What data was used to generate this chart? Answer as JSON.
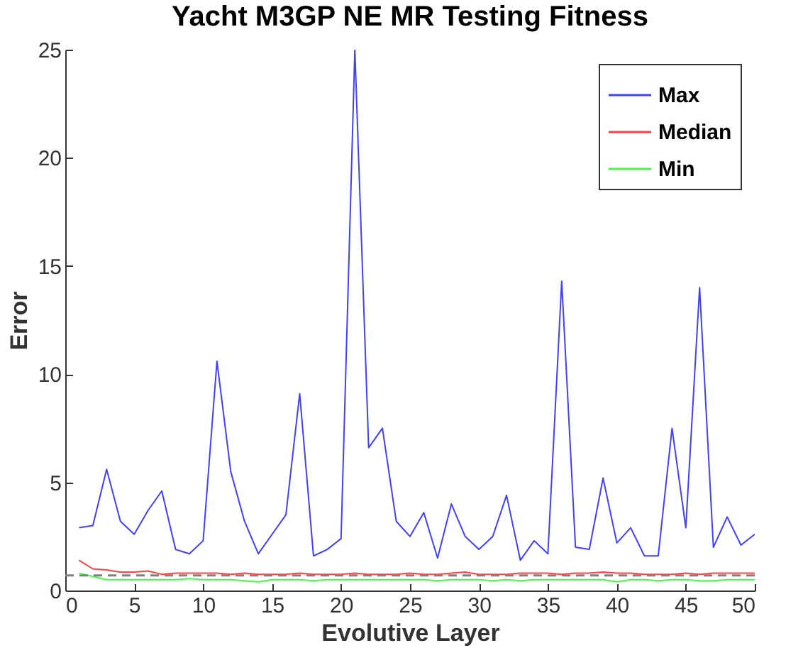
{
  "chart_data": {
    "type": "line",
    "title": "Yacht M3GP NE MR Testing Fitness",
    "xlabel": "Evolutive Layer",
    "ylabel": "Error",
    "x": [
      1,
      2,
      3,
      4,
      5,
      6,
      7,
      8,
      9,
      10,
      11,
      12,
      13,
      14,
      15,
      16,
      17,
      18,
      19,
      20,
      21,
      22,
      23,
      24,
      25,
      26,
      27,
      28,
      29,
      30,
      31,
      32,
      33,
      34,
      35,
      36,
      37,
      38,
      39,
      40,
      41,
      42,
      43,
      44,
      45,
      46,
      47,
      48,
      49,
      50
    ],
    "series": [
      {
        "name": "Max",
        "color": "#4040ff",
        "values": [
          2.9,
          3.0,
          5.6,
          3.2,
          2.6,
          3.7,
          4.6,
          1.9,
          1.7,
          2.3,
          10.6,
          5.5,
          3.2,
          1.7,
          2.6,
          3.5,
          9.1,
          1.6,
          1.9,
          2.4,
          25,
          6.6,
          7.5,
          3.2,
          2.5,
          3.6,
          1.5,
          4.0,
          2.5,
          1.9,
          2.5,
          4.4,
          1.4,
          2.3,
          1.7,
          14.3,
          2.0,
          1.9,
          5.2,
          2.2,
          2.9,
          1.6,
          1.6,
          7.5,
          2.9,
          14.0,
          2.0,
          3.4,
          2.1,
          2.6
        ]
      },
      {
        "name": "Median",
        "color": "#ff4040",
        "values": [
          1.4,
          1.0,
          0.95,
          0.85,
          0.85,
          0.9,
          0.75,
          0.8,
          0.8,
          0.8,
          0.8,
          0.75,
          0.8,
          0.75,
          0.75,
          0.75,
          0.8,
          0.75,
          0.75,
          0.75,
          0.8,
          0.75,
          0.75,
          0.75,
          0.8,
          0.75,
          0.75,
          0.8,
          0.85,
          0.75,
          0.75,
          0.75,
          0.8,
          0.8,
          0.8,
          0.75,
          0.8,
          0.8,
          0.85,
          0.8,
          0.8,
          0.75,
          0.75,
          0.75,
          0.8,
          0.75,
          0.8,
          0.8,
          0.8,
          0.8
        ]
      },
      {
        "name": "Min",
        "color": "#40ff40",
        "values": [
          0.8,
          0.65,
          0.5,
          0.5,
          0.5,
          0.5,
          0.5,
          0.5,
          0.55,
          0.5,
          0.5,
          0.5,
          0.45,
          0.4,
          0.5,
          0.5,
          0.5,
          0.45,
          0.5,
          0.5,
          0.5,
          0.5,
          0.5,
          0.5,
          0.5,
          0.5,
          0.45,
          0.5,
          0.5,
          0.5,
          0.45,
          0.5,
          0.45,
          0.5,
          0.5,
          0.5,
          0.5,
          0.5,
          0.5,
          0.4,
          0.5,
          0.5,
          0.45,
          0.5,
          0.5,
          0.45,
          0.45,
          0.5,
          0.5,
          0.5
        ]
      }
    ],
    "xlim": [
      0,
      50
    ],
    "xticks": [
      0,
      5,
      10,
      15,
      20,
      25,
      30,
      35,
      40,
      45,
      50
    ],
    "ylim": [
      0,
      25
    ],
    "yticks": [
      0,
      5,
      10,
      15,
      20,
      25
    ],
    "ref_lines": [
      {
        "axis": "y",
        "value": 0.7,
        "color": "#808080",
        "line_style": "dashed"
      }
    ],
    "legend": "top right",
    "grid": false
  }
}
